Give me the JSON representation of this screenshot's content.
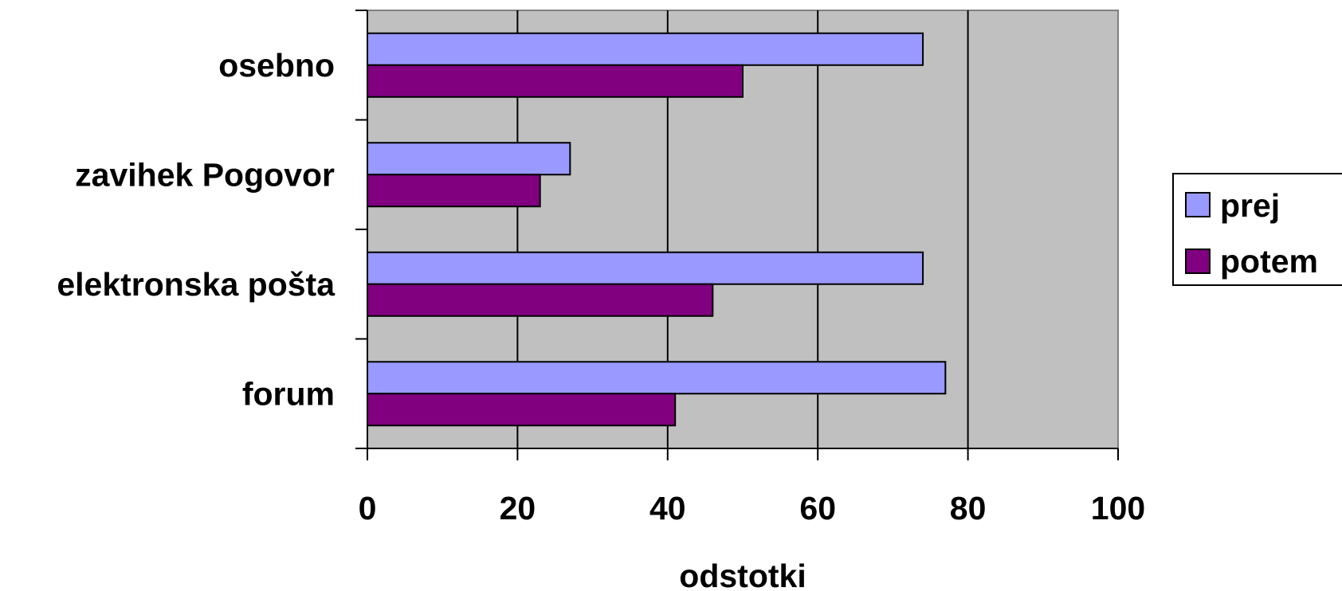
{
  "chart_data": {
    "type": "bar",
    "orientation": "horizontal",
    "categories": [
      "osebno",
      "zavihek Pogovor",
      "elektronska pošta",
      "forum"
    ],
    "series": [
      {
        "name": "prej",
        "values": [
          74,
          27,
          74,
          77
        ],
        "color": "#9999ff"
      },
      {
        "name": "potem",
        "values": [
          50,
          23,
          46,
          41
        ],
        "color": "#800080"
      }
    ],
    "xlabel": "odstotki",
    "ylabel": "",
    "xlim": [
      0,
      100
    ],
    "xticks": [
      0,
      20,
      40,
      60,
      80,
      100
    ],
    "grid": true,
    "legend_position": "right",
    "plot_background": "#c0c0c0"
  }
}
